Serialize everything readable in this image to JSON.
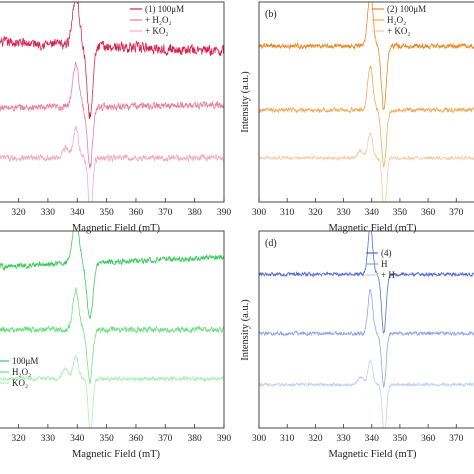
{
  "chart_data": [
    {
      "type": "line",
      "panel_label": "",
      "xlabel": "Magnetic Field (mT)",
      "ylabel": "",
      "x_ticks": [
        320,
        330,
        340,
        350,
        360,
        370,
        380,
        390
      ],
      "xlim": [
        313,
        390
      ],
      "legend": [
        "(1) 100μM",
        "+ H₂O₂",
        "+ KO₂"
      ],
      "series": [
        {
          "name": "(1) 100μM",
          "color": "#d6204e",
          "baseline": 0.8,
          "slope": -0.0006,
          "noise": 0.045,
          "features": [
            {
              "x": 339.5,
              "a": 0.25,
              "w": 1.6
            },
            {
              "x": 344.3,
              "a": -0.35,
              "w": 1.4
            }
          ]
        },
        {
          "name": "+ H₂O₂",
          "color": "#e87a9a",
          "baseline": 0.47,
          "slope": 0.0002,
          "noise": 0.03,
          "features": [
            {
              "x": 339.5,
              "a": 0.22,
              "w": 1.5
            },
            {
              "x": 344.3,
              "a": -0.3,
              "w": 1.3
            }
          ]
        },
        {
          "name": "+ KO₂",
          "color": "#f2aac2",
          "baseline": 0.22,
          "slope": 0.0,
          "noise": 0.028,
          "features": [
            {
              "x": 336.0,
              "a": 0.05,
              "w": 1.5
            },
            {
              "x": 339.5,
              "a": 0.15,
              "w": 1.3
            },
            {
              "x": 344.5,
              "a": -0.3,
              "w": 1.0
            }
          ]
        }
      ]
    },
    {
      "type": "line",
      "panel_label": "(b)",
      "xlabel": "Magnetic Field (mT)",
      "ylabel": "Intensity (a.u.)",
      "x_ticks": [
        300,
        310,
        320,
        330,
        340,
        350,
        360,
        370
      ],
      "xlim": [
        300,
        377
      ],
      "legend": [
        "(2) 100μM",
        "H₂O₂",
        "+ KO₂"
      ],
      "series": [
        {
          "name": "(2) 100μM",
          "color": "#e8861e",
          "baseline": 0.78,
          "slope": 0.0,
          "noise": 0.022,
          "features": [
            {
              "x": 339.5,
              "a": 0.27,
              "w": 1.3
            },
            {
              "x": 344.3,
              "a": -0.32,
              "w": 1.2
            }
          ]
        },
        {
          "name": "H₂O₂",
          "color": "#f1a85a",
          "baseline": 0.46,
          "slope": 0.0,
          "noise": 0.02,
          "features": [
            {
              "x": 339.5,
              "a": 0.22,
              "w": 1.3
            },
            {
              "x": 344.3,
              "a": -0.28,
              "w": 1.2
            }
          ]
        },
        {
          "name": "+ KO₂",
          "color": "#f6c9a2",
          "baseline": 0.22,
          "slope": 0.0,
          "noise": 0.015,
          "features": [
            {
              "x": 336.0,
              "a": 0.04,
              "w": 1.4
            },
            {
              "x": 339.5,
              "a": 0.12,
              "w": 1.2
            },
            {
              "x": 344.5,
              "a": -0.28,
              "w": 1.0
            }
          ]
        }
      ]
    },
    {
      "type": "line",
      "panel_label": "",
      "xlabel": "Magnetic Field (mT)",
      "ylabel": "",
      "x_ticks": [
        320,
        330,
        340,
        350,
        360,
        370,
        380,
        390
      ],
      "xlim": [
        313,
        390
      ],
      "legend": [
        "100μM",
        "H₂O₂",
        "KO₂"
      ],
      "series": [
        {
          "name": "100μM",
          "color": "#38c95a",
          "baseline": 0.82,
          "slope": 0.0006,
          "noise": 0.025,
          "features": [
            {
              "x": 339.5,
              "a": 0.22,
              "w": 1.6
            },
            {
              "x": 344.3,
              "a": -0.28,
              "w": 1.5
            }
          ]
        },
        {
          "name": "H₂O₂",
          "color": "#6fdc82",
          "baseline": 0.5,
          "slope": 0.0,
          "noise": 0.025,
          "features": [
            {
              "x": 339.5,
              "a": 0.2,
              "w": 1.4
            },
            {
              "x": 344.3,
              "a": -0.26,
              "w": 1.3
            }
          ]
        },
        {
          "name": "KO₂",
          "color": "#a9eeb2",
          "baseline": 0.25,
          "slope": 0.0,
          "noise": 0.018,
          "features": [
            {
              "x": 336.0,
              "a": 0.05,
              "w": 1.4
            },
            {
              "x": 339.5,
              "a": 0.12,
              "w": 1.2
            },
            {
              "x": 344.5,
              "a": -0.28,
              "w": 1.0
            }
          ]
        }
      ]
    },
    {
      "type": "line",
      "panel_label": "(d)",
      "xlabel": "Magnetic Field (mT)",
      "ylabel": "Intensity (a.u.)",
      "x_ticks": [
        300,
        310,
        320,
        330,
        340,
        350,
        360,
        370
      ],
      "xlim": [
        300,
        377
      ],
      "legend": [
        "(4)",
        "H",
        "+ H"
      ],
      "series": [
        {
          "name": "(4)",
          "color": "#4a68cf",
          "baseline": 0.78,
          "slope": 0.0,
          "noise": 0.016,
          "features": [
            {
              "x": 339.5,
              "a": 0.24,
              "w": 1.2
            },
            {
              "x": 344.3,
              "a": -0.3,
              "w": 1.1
            }
          ]
        },
        {
          "name": "H",
          "color": "#8ea1e2",
          "baseline": 0.48,
          "slope": 0.0,
          "noise": 0.016,
          "features": [
            {
              "x": 339.5,
              "a": 0.22,
              "w": 1.2
            },
            {
              "x": 344.3,
              "a": -0.27,
              "w": 1.1
            }
          ]
        },
        {
          "name": "+ H",
          "color": "#c3cdef",
          "baseline": 0.22,
          "slope": 0.0,
          "noise": 0.014,
          "features": [
            {
              "x": 336.0,
              "a": 0.04,
              "w": 1.3
            },
            {
              "x": 339.5,
              "a": 0.12,
              "w": 1.2
            },
            {
              "x": 344.5,
              "a": -0.26,
              "w": 1.0
            }
          ]
        }
      ]
    }
  ]
}
